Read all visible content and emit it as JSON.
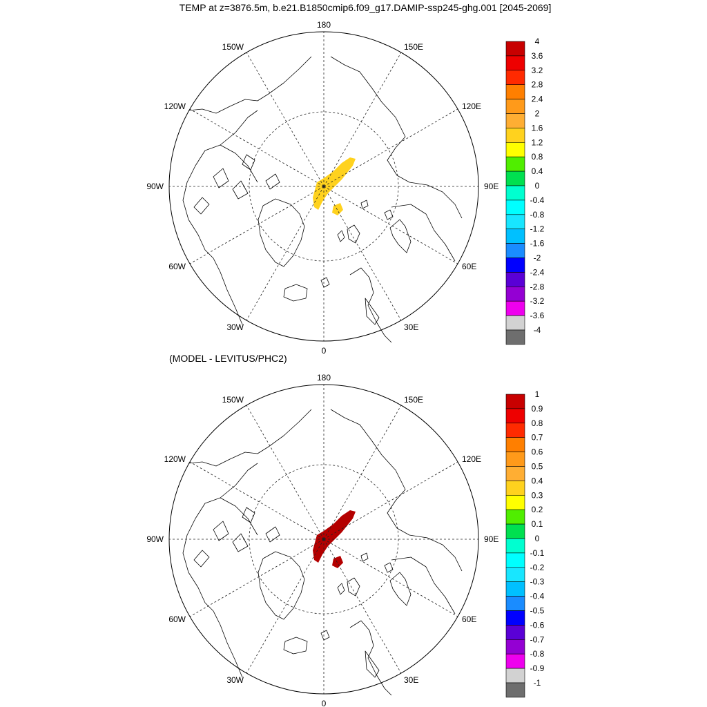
{
  "title": "TEMP at z=3876.5m, b.e21.B1850cmip6.f09_g17.DAMIP-ssp245-ghg.001 [2045-2069]",
  "panels": [
    {
      "subtitle": "",
      "lon_labels": {
        "top": "180",
        "upper_left": "150W",
        "upper_right": "150E",
        "mid_upper_left": "120W",
        "mid_upper_right": "120E",
        "left": "90W",
        "right": "90E",
        "mid_lower_left": "60W",
        "mid_lower_right": "60E",
        "lower_left": "30W",
        "lower_right": "30E",
        "bottom": "0"
      },
      "anomaly_color": "#ffd21e",
      "colorbar": {
        "labels": [
          "4",
          "3.6",
          "3.2",
          "2.8",
          "2.4",
          "2",
          "1.6",
          "1.2",
          "0.8",
          "0.4",
          "0",
          "-0.4",
          "-0.8",
          "-1.2",
          "-1.6",
          "-2",
          "-2.4",
          "-2.8",
          "-3.2",
          "-3.6",
          "-4"
        ],
        "colors": [
          "#c80000",
          "#ee0000",
          "#ff2a00",
          "#ff7f00",
          "#ff9a1a",
          "#ffae33",
          "#ffd21e",
          "#ffff00",
          "#50ee00",
          "#00e050",
          "#00ffd0",
          "#00ffff",
          "#18e6ff",
          "#00c0ff",
          "#1a8cff",
          "#0000ff",
          "#5a00d6",
          "#9400d3",
          "#ee00ee",
          "#d2d2d2",
          "#6e6e6e"
        ]
      }
    },
    {
      "subtitle": "(MODEL - LEVITUS/PHC2)",
      "lon_labels": {
        "top": "180",
        "upper_left": "150W",
        "upper_right": "150E",
        "mid_upper_left": "120W",
        "mid_upper_right": "120E",
        "left": "90W",
        "right": "90E",
        "mid_lower_left": "60W",
        "mid_lower_right": "60E",
        "lower_left": "30W",
        "lower_right": "30E",
        "bottom": "0"
      },
      "anomaly_color": "#b40000",
      "colorbar": {
        "labels": [
          "1",
          "0.9",
          "0.8",
          "0.7",
          "0.6",
          "0.5",
          "0.4",
          "0.3",
          "0.2",
          "0.1",
          "0",
          "-0.1",
          "-0.2",
          "-0.3",
          "-0.4",
          "-0.5",
          "-0.6",
          "-0.7",
          "-0.8",
          "-0.9",
          "-1"
        ],
        "colors": [
          "#c80000",
          "#ee0000",
          "#ff2a00",
          "#ff7f00",
          "#ff9a1a",
          "#ffae33",
          "#ffd21e",
          "#ffff00",
          "#50ee00",
          "#00e050",
          "#00ffd0",
          "#00ffff",
          "#18e6ff",
          "#00c0ff",
          "#1a8cff",
          "#0000ff",
          "#5a00d6",
          "#9400d3",
          "#ee00ee",
          "#d2d2d2",
          "#6e6e6e"
        ]
      }
    }
  ]
}
